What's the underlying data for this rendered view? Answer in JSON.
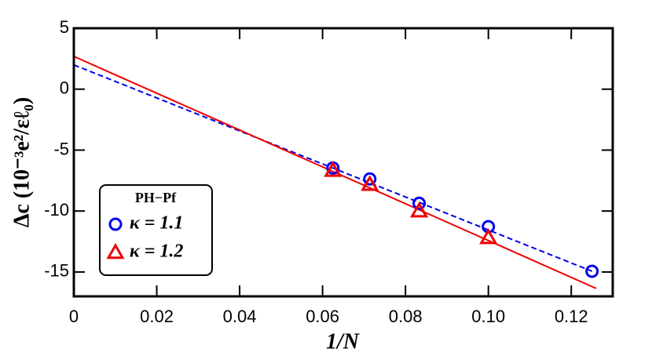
{
  "chart_data": {
    "type": "scatter",
    "xlabel": "1/N",
    "ylabel": "Δc (10⁻³e²/εℓ₀)",
    "xlim": [
      0,
      0.13
    ],
    "ylim": [
      -17,
      5
    ],
    "xticks": [
      0,
      0.02,
      0.04,
      0.06,
      0.08,
      {
        "value": 0.1,
        "label": "0.10"
      },
      0.12
    ],
    "yticks": [
      5,
      0,
      -5,
      -10,
      -15
    ],
    "legend_title": "PH−Pf",
    "legend": "lower left",
    "series": [
      {
        "name": "κ = 1.1",
        "color": "#0000ee",
        "marker": "circle",
        "x": [
          0.0625,
          0.0714,
          0.0833,
          0.1,
          0.125
        ],
        "values": [
          -6.47,
          -7.37,
          -9.36,
          -11.28,
          -14.94
        ]
      },
      {
        "name": "κ = 1.2",
        "color": "#ee0000",
        "marker": "triangle",
        "x": [
          0.0625,
          0.0714,
          0.0833,
          0.1
        ],
        "values": [
          -6.67,
          -7.82,
          -10.0,
          -12.18
        ]
      }
    ],
    "fits": [
      {
        "color": "#0000ee",
        "dashed": true,
        "x": [
          0,
          0.125
        ],
        "values": [
          1.99,
          -14.94
        ]
      },
      {
        "color": "#ee0000",
        "dashed": false,
        "x": [
          0,
          0.126
        ],
        "values": [
          2.69,
          -16.35
        ]
      }
    ]
  }
}
